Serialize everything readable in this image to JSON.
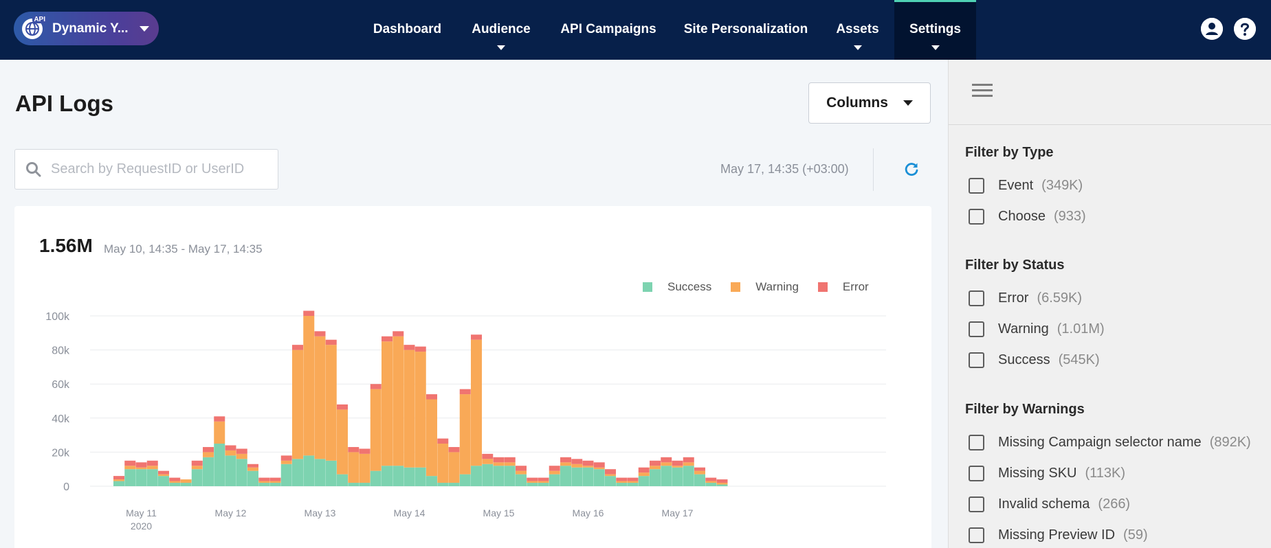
{
  "header": {
    "site_badge": "API",
    "site_name": "Dynamic Y...",
    "nav": [
      {
        "label": "Dashboard"
      },
      {
        "label": "Audience"
      },
      {
        "label": "API Campaigns"
      },
      {
        "label": "Site Personalization"
      },
      {
        "label": "Assets"
      },
      {
        "label": "Settings"
      }
    ]
  },
  "main": {
    "title": "API Logs",
    "columns_label": "Columns",
    "search_placeholder": "Search by RequestID or UserID",
    "timestamp": "May 17, 14:35 (+03:00)",
    "total": "1.56M",
    "range": "May 10, 14:35 - May 17, 14:35"
  },
  "colors": {
    "success": "#7dd3b0",
    "warning": "#f9a957",
    "error": "#f07470",
    "accent": "#1a8fd6"
  },
  "chart_data": {
    "type": "bar",
    "stacked": true,
    "legend": [
      "Success",
      "Warning",
      "Error"
    ],
    "legend_position": "top-right",
    "ylim": [
      0,
      100000
    ],
    "y_ticks": [
      "100k",
      "80k",
      "60k",
      "40k",
      "20k",
      "0"
    ],
    "x_tick_labels": [
      {
        "label": "May 11",
        "sub": "2020",
        "index": 2
      },
      {
        "label": "May 12",
        "index": 10
      },
      {
        "label": "May 13",
        "index": 18
      },
      {
        "label": "May 14",
        "index": 26
      },
      {
        "label": "May 15",
        "index": 34
      },
      {
        "label": "May 16",
        "index": 42
      },
      {
        "label": "May 17",
        "index": 50
      }
    ],
    "series": [
      {
        "name": "Success",
        "values": [
          3000,
          10000,
          10000,
          10000,
          6000,
          2000,
          2000,
          10000,
          17000,
          25000,
          18000,
          16000,
          9000,
          2000,
          2000,
          13000,
          16000,
          18000,
          16000,
          15000,
          7000,
          2000,
          2000,
          9000,
          12000,
          12000,
          11000,
          11000,
          6000,
          2000,
          2000,
          7000,
          12000,
          13000,
          12000,
          12000,
          7000,
          2000,
          2000,
          7000,
          12000,
          11000,
          11000,
          10000,
          6000,
          2000,
          2000,
          6000,
          10000,
          12000,
          11000,
          12000,
          7000,
          2000,
          1000
        ]
      },
      {
        "name": "Warning",
        "values": [
          1000,
          2000,
          1000,
          2000,
          1000,
          1000,
          2000,
          2000,
          3000,
          13000,
          3000,
          3000,
          2000,
          1000,
          1000,
          2000,
          64000,
          82000,
          72000,
          68000,
          38000,
          18000,
          17000,
          48000,
          73000,
          76000,
          69000,
          68000,
          45000,
          23000,
          18000,
          47000,
          74000,
          3000,
          2000,
          2000,
          2000,
          1000,
          1000,
          2000,
          2000,
          2000,
          1000,
          1000,
          1000,
          1000,
          1000,
          2000,
          2000,
          2000,
          1000,
          2000,
          2000,
          1000,
          1000
        ]
      },
      {
        "name": "Error",
        "values": [
          2000,
          3000,
          3000,
          3000,
          2000,
          2000,
          0,
          3000,
          3000,
          3000,
          3000,
          3000,
          2000,
          2000,
          2000,
          3000,
          3000,
          3000,
          3000,
          3000,
          3000,
          3000,
          3000,
          3000,
          3000,
          3000,
          3000,
          3000,
          3000,
          3000,
          3000,
          3000,
          3000,
          3000,
          3000,
          3000,
          3000,
          2000,
          2000,
          3000,
          3000,
          3000,
          3000,
          3000,
          3000,
          2000,
          2000,
          3000,
          3000,
          3000,
          3000,
          3000,
          2000,
          2000,
          2000
        ]
      }
    ]
  },
  "filters": {
    "type_title": "Filter by Type",
    "type_options": [
      {
        "name": "Event",
        "count": "(349K)"
      },
      {
        "name": "Choose",
        "count": "(933)"
      }
    ],
    "status_title": "Filter by Status",
    "status_options": [
      {
        "name": "Error",
        "count": "(6.59K)"
      },
      {
        "name": "Warning",
        "count": "(1.01M)"
      },
      {
        "name": "Success",
        "count": "(545K)"
      }
    ],
    "warnings_title": "Filter by Warnings",
    "warnings_options": [
      {
        "name": "Missing Campaign selector name",
        "count": "(892K)"
      },
      {
        "name": "Missing SKU",
        "count": "(113K)"
      },
      {
        "name": "Invalid schema",
        "count": "(266)"
      },
      {
        "name": "Missing Preview ID",
        "count": "(59)"
      }
    ]
  }
}
